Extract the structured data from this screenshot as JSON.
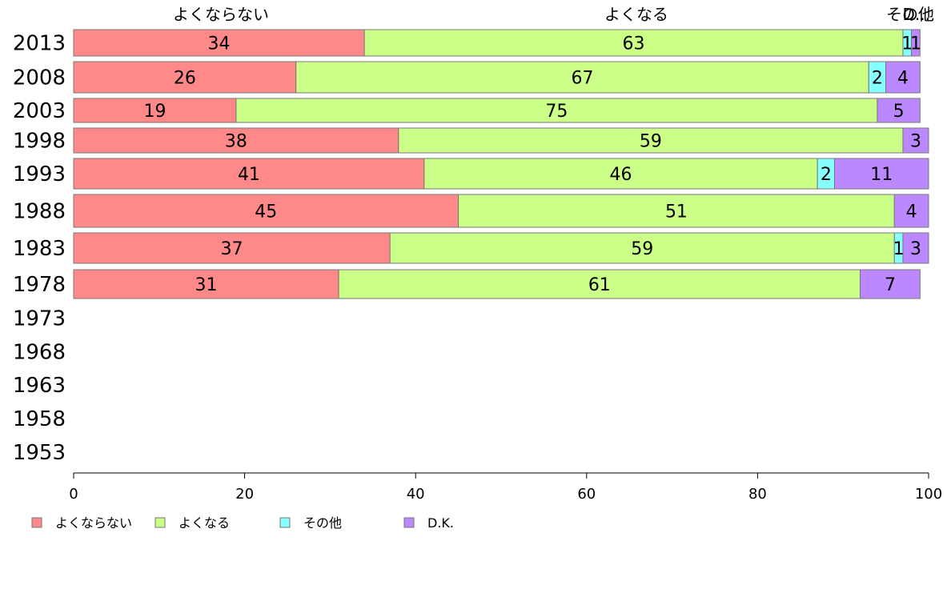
{
  "chart_data": {
    "type": "bar",
    "orientation": "horizontal",
    "stacked": true,
    "categories": [
      "2013",
      "2008",
      "2003",
      "1998",
      "1993",
      "1988",
      "1983",
      "1978",
      "1973",
      "1968",
      "1963",
      "1958",
      "1953"
    ],
    "series": [
      {
        "name": "よくならない",
        "color": "#ff8888",
        "values": [
          34,
          26,
          19,
          38,
          41,
          45,
          37,
          31,
          null,
          null,
          null,
          null,
          null
        ]
      },
      {
        "name": "よくなる",
        "color": "#ccff88",
        "values": [
          63,
          67,
          75,
          59,
          46,
          51,
          59,
          61,
          null,
          null,
          null,
          null,
          null
        ]
      },
      {
        "name": "その他",
        "color": "#88ffff",
        "values": [
          1,
          2,
          0,
          0,
          2,
          0,
          1,
          0,
          null,
          null,
          null,
          null,
          null
        ]
      },
      {
        "name": "D.K.",
        "color": "#bb88ff",
        "values": [
          1,
          4,
          5,
          3,
          11,
          4,
          3,
          7,
          null,
          null,
          null,
          null,
          null
        ]
      }
    ],
    "top_labels": [
      "よくならない",
      "よくなる",
      "その他",
      "D..."
    ],
    "xlim": [
      0,
      100
    ],
    "xticks": [
      "0",
      "20",
      "40",
      "60",
      "80",
      "100"
    ],
    "grid": false,
    "legend_position": "bottom-left"
  }
}
